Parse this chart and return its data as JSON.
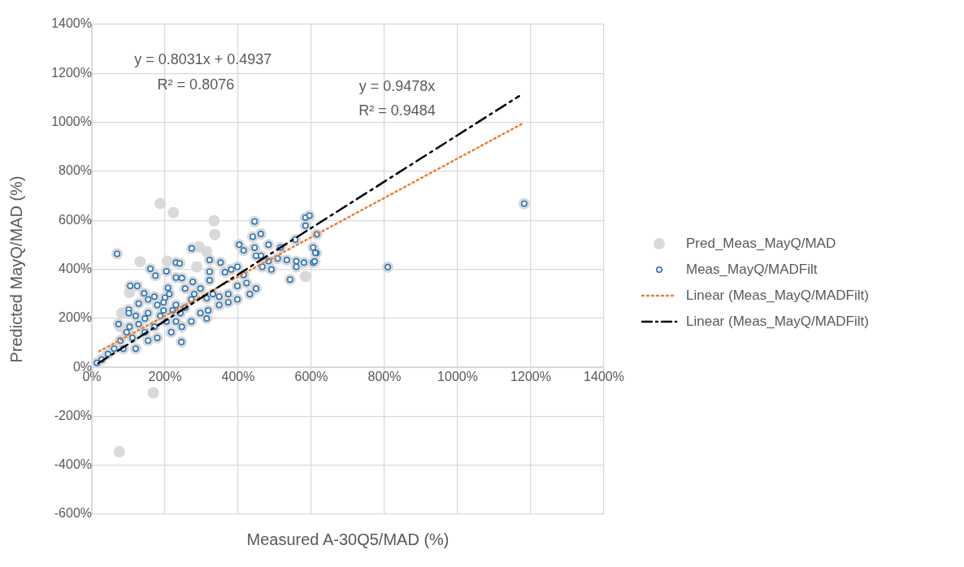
{
  "chart_data": {
    "type": "scatter",
    "xlabel": "Measured A-30Q5/MAD (%)",
    "ylabel": "Predicted MayQ/MAD (%)",
    "xlim": [
      0,
      1400
    ],
    "ylim": [
      -600,
      1400
    ],
    "xticks": [
      {
        "value": 0,
        "label": "0%"
      },
      {
        "value": 200,
        "label": "200%"
      },
      {
        "value": 400,
        "label": "400%"
      },
      {
        "value": 600,
        "label": "600%"
      },
      {
        "value": 800,
        "label": "800%"
      },
      {
        "value": 1000,
        "label": "1000%"
      },
      {
        "value": 1200,
        "label": "1200%"
      },
      {
        "value": 1400,
        "label": "1400%"
      }
    ],
    "yticks": [
      {
        "value": -600,
        "label": "-600%"
      },
      {
        "value": -400,
        "label": "-400%"
      },
      {
        "value": -200,
        "label": "-200%"
      },
      {
        "value": 0,
        "label": "0%"
      },
      {
        "value": 200,
        "label": "200%"
      },
      {
        "value": 400,
        "label": "400%"
      },
      {
        "value": 600,
        "label": "600%"
      },
      {
        "value": 800,
        "label": "800%"
      },
      {
        "value": 1000,
        "label": "1000%"
      },
      {
        "value": 1200,
        "label": "1200%"
      },
      {
        "value": 1400,
        "label": "1400%"
      }
    ],
    "grid": true,
    "legend": "right",
    "series": [
      {
        "name": "Pred_Meas_MayQ/MAD",
        "marker": "circle",
        "color": "#d9d9d9",
        "x": [
          187,
          223,
          334,
          336,
          132,
          206,
          293,
          314,
          287,
          584,
          103,
          82,
          78,
          168,
          75,
          1182,
          809,
          69,
          445,
          273,
          160,
          174,
          204,
          230,
          240,
          230,
          246,
          105,
          124,
          143,
          208,
          171,
          200,
          128,
          101,
          101,
          73,
          120,
          154,
          179,
          221,
          187,
          255,
          230,
          217,
          245,
          179,
          145,
          111,
          95,
          78,
          61,
          44,
          27,
          14,
          86,
          120,
          154,
          171,
          204,
          246,
          272,
          297,
          314,
          318,
          348,
          373,
          331,
          297,
          276,
          322,
          322,
          322,
          352,
          364,
          381,
          398,
          415,
          423,
          449,
          432,
          398,
          373,
          348,
          398,
          403,
          415,
          440,
          462,
          445,
          483,
          462,
          483,
          466,
          491,
          508,
          533,
          559,
          584,
          595,
          584,
          605,
          614,
          605,
          580,
          542,
          559,
          516,
          449,
          196,
          154,
          230,
          272,
          280,
          314,
          242,
          128,
          103,
          145,
          196,
          212,
          255,
          609,
          556,
          615
        ],
        "values": [
          669,
          631,
          598,
          542,
          431,
          433,
          491,
          472,
          410,
          371,
          305,
          221,
          165,
          -104,
          -345,
          668,
          409,
          463,
          595,
          485,
          402,
          374,
          392,
          427,
          424,
          366,
          364,
          332,
          332,
          302,
          324,
          288,
          284,
          260,
          235,
          221,
          176,
          210,
          221,
          254,
          232,
          210,
          243,
          187,
          143,
          103,
          120,
          143,
          120,
          143,
          109,
          76,
          54,
          31,
          18,
          76,
          76,
          109,
          165,
          187,
          165,
          187,
          221,
          199,
          232,
          288,
          299,
          299,
          321,
          349,
          355,
          390,
          438,
          427,
          388,
          399,
          410,
          377,
          344,
          321,
          299,
          332,
          265,
          254,
          277,
          500,
          477,
          533,
          544,
          488,
          500,
          455,
          433,
          410,
          399,
          444,
          438,
          433,
          611,
          619,
          578,
          489,
          466,
          427,
          427,
          358,
          410,
          489,
          455,
          265,
          277,
          254,
          277,
          299,
          282,
          221,
          176,
          165,
          199,
          232,
          299,
          321,
          432,
          521,
          543
        ]
      },
      {
        "name": "Meas_MayQ/MADFilt",
        "marker": "circle",
        "color": "#2e75b6",
        "x": [
          1182,
          809,
          69,
          445,
          273,
          160,
          174,
          204,
          230,
          240,
          230,
          246,
          105,
          124,
          143,
          208,
          171,
          200,
          128,
          101,
          101,
          73,
          120,
          154,
          179,
          221,
          187,
          255,
          230,
          217,
          245,
          179,
          145,
          111,
          95,
          78,
          61,
          44,
          27,
          14,
          86,
          120,
          154,
          171,
          204,
          246,
          272,
          297,
          314,
          318,
          348,
          373,
          331,
          297,
          276,
          322,
          322,
          322,
          352,
          364,
          381,
          398,
          415,
          423,
          449,
          432,
          398,
          373,
          348,
          398,
          403,
          415,
          440,
          462,
          445,
          483,
          462,
          483,
          466,
          491,
          508,
          533,
          559,
          584,
          595,
          584,
          605,
          614,
          605,
          580,
          542,
          559,
          516,
          449,
          196,
          154,
          230,
          272,
          280,
          314,
          242,
          128,
          103,
          145,
          196,
          212,
          255,
          609,
          611,
          556,
          615
        ],
        "values": [
          668,
          409,
          463,
          595,
          485,
          402,
          374,
          392,
          427,
          424,
          366,
          364,
          332,
          332,
          302,
          324,
          288,
          284,
          260,
          235,
          221,
          176,
          210,
          221,
          254,
          232,
          210,
          243,
          187,
          143,
          103,
          120,
          143,
          120,
          143,
          109,
          76,
          54,
          31,
          18,
          76,
          76,
          109,
          165,
          187,
          165,
          187,
          221,
          199,
          232,
          288,
          299,
          299,
          321,
          349,
          355,
          390,
          438,
          427,
          388,
          399,
          410,
          377,
          344,
          321,
          299,
          332,
          265,
          254,
          277,
          500,
          477,
          533,
          544,
          488,
          500,
          455,
          433,
          410,
          399,
          444,
          438,
          433,
          611,
          619,
          578,
          489,
          466,
          427,
          427,
          358,
          410,
          489,
          455,
          265,
          277,
          254,
          277,
          299,
          282,
          221,
          176,
          165,
          199,
          232,
          299,
          321,
          432,
          467,
          521,
          543
        ]
      },
      {
        "name": "Linear (Meas_MayQ/MADFilt)",
        "type": "line",
        "marker": "none",
        "line_style": "dotted",
        "color": "#ed7d31",
        "x": [
          20,
          1180
        ],
        "values": [
          65,
          997
        ]
      },
      {
        "name": "Linear (Meas_MayQ/MADFilt)",
        "type": "line",
        "marker": "none",
        "line_style": "dashed",
        "color": "#000000",
        "x": [
          17,
          1168
        ],
        "values": [
          16,
          1107
        ]
      }
    ],
    "annotations": [
      "y = 0.8031x + 0.4937",
      "R² = 0.8076",
      "y = 0.9478x",
      "R² = 0.9484"
    ]
  }
}
